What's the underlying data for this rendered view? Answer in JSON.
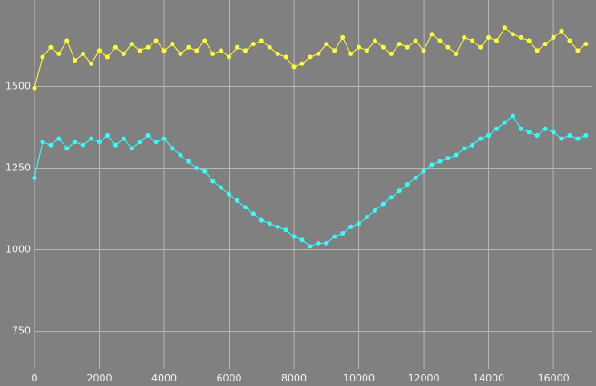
{
  "chart_data": {
    "type": "line",
    "x": [
      0,
      250,
      500,
      750,
      1000,
      1250,
      1500,
      1750,
      2000,
      2250,
      2500,
      2750,
      3000,
      3250,
      3500,
      3750,
      4000,
      4250,
      4500,
      4750,
      5000,
      5250,
      5500,
      5750,
      6000,
      6250,
      6500,
      6750,
      7000,
      7250,
      7500,
      7750,
      8000,
      8250,
      8500,
      8750,
      9000,
      9250,
      9500,
      9750,
      10000,
      10250,
      10500,
      10750,
      11000,
      11250,
      11500,
      11750,
      12000,
      12250,
      12500,
      12750,
      13000,
      13250,
      13500,
      13750,
      14000,
      14250,
      14500,
      14750,
      15000,
      15250,
      15500,
      15750,
      16000,
      16250,
      16500,
      16750,
      17000
    ],
    "series": [
      {
        "color": "#ffff33",
        "values": [
          1495,
          1590,
          1620,
          1600,
          1640,
          1580,
          1600,
          1570,
          1610,
          1590,
          1620,
          1600,
          1630,
          1610,
          1620,
          1640,
          1610,
          1630,
          1600,
          1620,
          1610,
          1640,
          1600,
          1610,
          1590,
          1620,
          1610,
          1630,
          1640,
          1620,
          1600,
          1590,
          1560,
          1570,
          1590,
          1600,
          1630,
          1610,
          1650,
          1600,
          1620,
          1610,
          1640,
          1620,
          1600,
          1630,
          1620,
          1640,
          1610,
          1660,
          1640,
          1620,
          1600,
          1650,
          1640,
          1620,
          1650,
          1640,
          1680,
          1660,
          1650,
          1640,
          1610,
          1630,
          1650,
          1670,
          1640,
          1610,
          1630
        ]
      },
      {
        "color": "#33ffff",
        "values": [
          1220,
          1330,
          1320,
          1340,
          1310,
          1330,
          1320,
          1340,
          1330,
          1350,
          1320,
          1340,
          1310,
          1330,
          1350,
          1330,
          1340,
          1310,
          1290,
          1270,
          1250,
          1240,
          1210,
          1190,
          1170,
          1150,
          1130,
          1110,
          1090,
          1080,
          1070,
          1060,
          1040,
          1030,
          1010,
          1020,
          1020,
          1040,
          1050,
          1070,
          1080,
          1100,
          1120,
          1140,
          1160,
          1180,
          1200,
          1220,
          1240,
          1260,
          1270,
          1280,
          1290,
          1310,
          1320,
          1340,
          1350,
          1370,
          1390,
          1410,
          1370,
          1360,
          1350,
          1370,
          1360,
          1340,
          1350,
          1340,
          1350
        ]
      }
    ],
    "xlim": [
      0,
      17200
    ],
    "ylim": [
      635,
      1765
    ],
    "xticks": [
      0,
      2000,
      4000,
      6000,
      8000,
      10000,
      12000,
      14000,
      16000
    ],
    "yticks": [
      750,
      1000,
      1250,
      1500
    ],
    "grid": true
  }
}
